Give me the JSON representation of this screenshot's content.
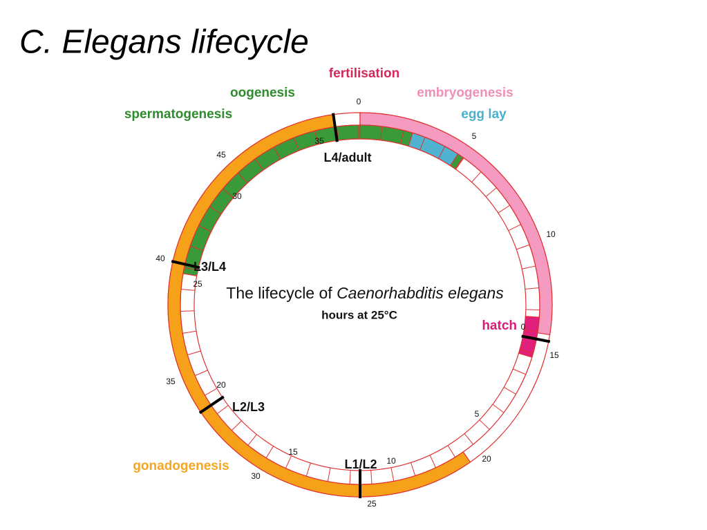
{
  "header": {
    "title": "C. Elegans lifecycle"
  },
  "diagram": {
    "center": {
      "title_prefix": "The lifecycle of ",
      "title_species": "Caenorhabditis elegans",
      "subtitle": "hours at 25°C"
    },
    "labels": {
      "fertilisation": "fertilisation",
      "oogenesis": "oogenesis",
      "spermatogenesis": "spermatogenesis",
      "embryogenesis": "embryogenesis",
      "egg_lay": "egg lay",
      "hatch": "hatch",
      "gonadogenesis": "gonadogenesis"
    },
    "stages": [
      "L4/adult",
      "L3/L4",
      "L2/L3",
      "L1/L2"
    ],
    "outer_scale": [
      0,
      5,
      10,
      15,
      20,
      25,
      30,
      35,
      40,
      45
    ],
    "inner_scale": [
      0,
      5,
      10,
      15,
      20,
      25,
      30,
      35
    ]
  }
}
